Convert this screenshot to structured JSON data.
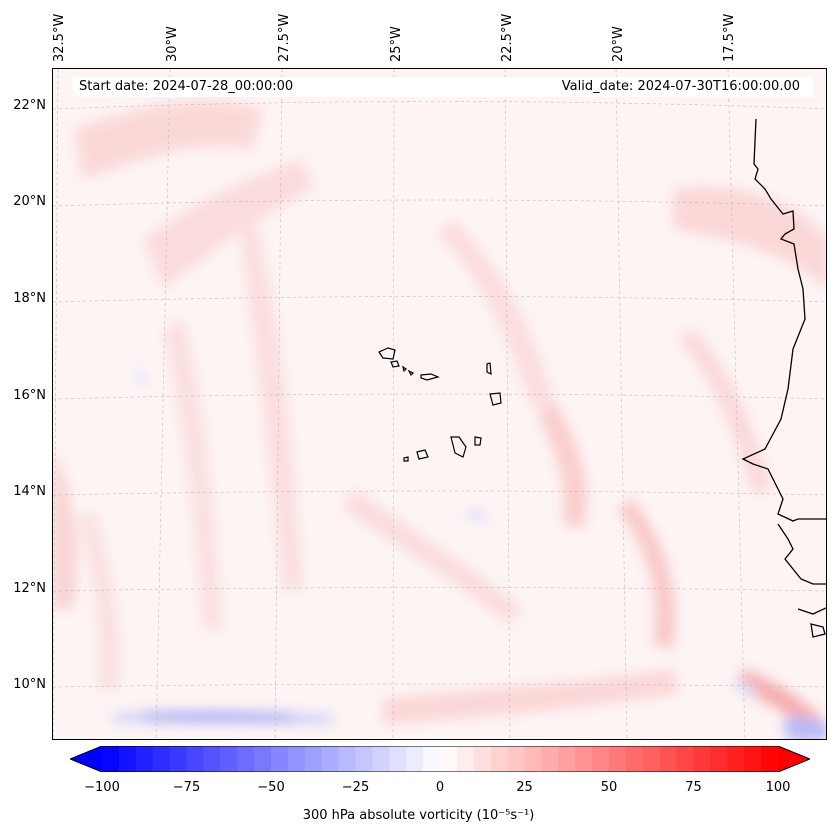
{
  "map": {
    "start_date": "Start date: 2024-07-28_00:00:00",
    "valid_date": "Valid_date: 2024-07-30T16:00:00.00",
    "lon_labels": [
      "32.5°W",
      "30°W",
      "27.5°W",
      "25°W",
      "22.5°W",
      "20°W",
      "17.5°W"
    ],
    "lat_labels": [
      "22°N",
      "20°N",
      "18°N",
      "16°N",
      "14°N",
      "12°N",
      "10°N"
    ],
    "colors": {
      "negative": "#0000ff",
      "neutral": "#ffffff",
      "positive": "#ff0000",
      "coast": "#000000",
      "grid": "#bbbbbb"
    }
  },
  "colorbar": {
    "ticks": [
      "−100",
      "−75",
      "−50",
      "−25",
      "0",
      "25",
      "50",
      "75",
      "100"
    ],
    "label": "300 hPa absolute vorticity (10⁻⁵s⁻¹)",
    "range": [
      -100,
      100
    ]
  }
}
